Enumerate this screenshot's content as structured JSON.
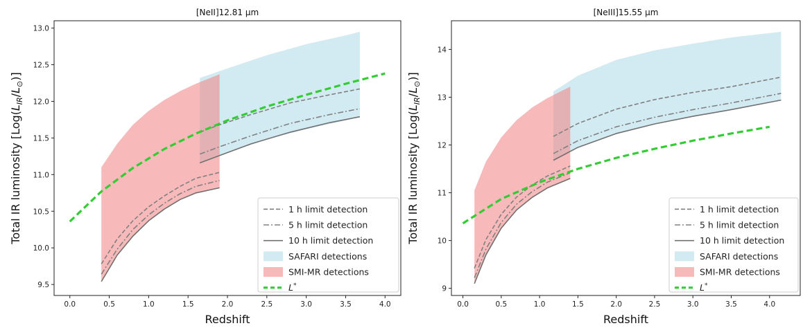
{
  "chart_data": [
    {
      "type": "line",
      "title": "[NeII]12.81 μm",
      "xlabel": "Redshift",
      "ylabel": "Total IR luminosity [Log(L_IR/L_⊙)]",
      "xlim": [
        -0.2,
        4.2
      ],
      "ylim": [
        9.35,
        13.1
      ],
      "xticks": [
        "0.0",
        "0.5",
        "1.0",
        "1.5",
        "2.0",
        "2.5",
        "3.0",
        "3.5",
        "4.0"
      ],
      "yticks": [
        "9.5",
        "10.0",
        "10.5",
        "11.0",
        "11.5",
        "12.0",
        "12.5",
        "13.0"
      ],
      "legend_position": "lower-right",
      "series": [
        {
          "name": "1 h limit detection",
          "style": "dashed",
          "color": "#808080",
          "segments": [
            {
              "x": [
                0.4,
                0.6,
                0.8,
                1.0,
                1.2,
                1.4,
                1.6,
                1.9
              ],
              "y": [
                9.78,
                10.12,
                10.37,
                10.56,
                10.71,
                10.84,
                10.95,
                11.03
              ]
            },
            {
              "x": [
                1.65,
                1.9,
                2.3,
                2.8,
                3.3,
                3.68
              ],
              "y": [
                11.58,
                11.68,
                11.82,
                11.98,
                12.09,
                12.17
              ]
            }
          ]
        },
        {
          "name": "5 h limit detection",
          "style": "dashdot",
          "color": "#808080",
          "segments": [
            {
              "x": [
                0.4,
                0.6,
                0.8,
                1.0,
                1.2,
                1.4,
                1.6,
                1.9
              ],
              "y": [
                9.64,
                9.98,
                10.25,
                10.45,
                10.61,
                10.74,
                10.84,
                10.92
              ]
            },
            {
              "x": [
                1.65,
                1.9,
                2.3,
                2.8,
                3.3,
                3.68
              ],
              "y": [
                11.28,
                11.38,
                11.53,
                11.7,
                11.82,
                11.9
              ]
            }
          ]
        },
        {
          "name": "10 h limit detection",
          "style": "solid",
          "color": "#707070",
          "segments": [
            {
              "x": [
                0.4,
                0.6,
                0.8,
                1.0,
                1.2,
                1.4,
                1.6,
                1.9
              ],
              "y": [
                9.54,
                9.9,
                10.16,
                10.37,
                10.53,
                10.66,
                10.75,
                10.82
              ]
            },
            {
              "x": [
                1.65,
                1.9,
                2.3,
                2.8,
                3.3,
                3.68
              ],
              "y": [
                11.16,
                11.26,
                11.42,
                11.58,
                11.71,
                11.79
              ]
            }
          ]
        },
        {
          "name": "SAFARI detections",
          "style": "fill",
          "color": "#add8e6",
          "x": [
            1.65,
            2.0,
            2.5,
            3.0,
            3.5,
            3.68
          ],
          "lower": [
            11.16,
            11.3,
            11.48,
            11.62,
            11.74,
            11.79
          ],
          "upper": [
            12.32,
            12.45,
            12.63,
            12.78,
            12.9,
            12.95
          ]
        },
        {
          "name": "SMI-MR detections",
          "style": "fill",
          "color": "#f08080",
          "x": [
            0.4,
            0.6,
            0.8,
            1.0,
            1.2,
            1.4,
            1.6,
            1.9
          ],
          "lower": [
            9.54,
            9.9,
            10.16,
            10.37,
            10.53,
            10.66,
            10.75,
            10.82
          ],
          "upper": [
            11.1,
            11.42,
            11.68,
            11.87,
            12.02,
            12.14,
            12.24,
            12.37
          ]
        },
        {
          "name": "L*",
          "style": "thick-dashed",
          "color": "#33cc33",
          "x": [
            0.0,
            0.4,
            0.8,
            1.2,
            1.6,
            2.0,
            2.5,
            3.0,
            3.5,
            4.0
          ],
          "y": [
            10.36,
            10.77,
            11.09,
            11.35,
            11.56,
            11.74,
            11.93,
            12.09,
            12.24,
            12.38
          ]
        }
      ]
    },
    {
      "type": "line",
      "title": "[NeIII]15.55 μm",
      "xlabel": "Redshift",
      "ylabel": "Total IR luminosity [Log(L_IR/L_⊙)]",
      "xlim": [
        -0.15,
        4.4
      ],
      "ylim": [
        8.85,
        14.6
      ],
      "xticks": [
        "0.0",
        "0.5",
        "1.0",
        "1.5",
        "2.0",
        "2.5",
        "3.0",
        "3.5",
        "4.0"
      ],
      "yticks": [
        "9",
        "10",
        "11",
        "12",
        "13",
        "14"
      ],
      "legend_position": "lower-right",
      "series": [
        {
          "name": "1 h limit detection",
          "style": "dashed",
          "color": "#808080",
          "segments": [
            {
              "x": [
                0.15,
                0.3,
                0.5,
                0.7,
                0.9,
                1.1,
                1.4
              ],
              "y": [
                9.42,
                10.02,
                10.55,
                10.91,
                11.16,
                11.35,
                11.56
              ]
            },
            {
              "x": [
                1.18,
                1.5,
                2.0,
                2.5,
                3.0,
                3.5,
                4.15
              ],
              "y": [
                12.18,
                12.45,
                12.75,
                12.95,
                13.1,
                13.22,
                13.42
              ]
            }
          ]
        },
        {
          "name": "5 h limit detection",
          "style": "dashdot",
          "color": "#808080",
          "segments": [
            {
              "x": [
                0.15,
                0.3,
                0.5,
                0.7,
                0.9,
                1.1,
                1.4
              ],
              "y": [
                9.22,
                9.82,
                10.38,
                10.76,
                11.02,
                11.22,
                11.42
              ]
            },
            {
              "x": [
                1.18,
                1.5,
                2.0,
                2.5,
                3.0,
                3.5,
                4.15
              ],
              "y": [
                11.82,
                12.09,
                12.38,
                12.58,
                12.74,
                12.88,
                13.08
              ]
            }
          ]
        },
        {
          "name": "10 h limit detection",
          "style": "solid",
          "color": "#707070",
          "segments": [
            {
              "x": [
                0.15,
                0.3,
                0.5,
                0.7,
                0.9,
                1.1,
                1.4
              ],
              "y": [
                9.1,
                9.7,
                10.26,
                10.64,
                10.9,
                11.1,
                11.3
              ]
            },
            {
              "x": [
                1.18,
                1.5,
                2.0,
                2.5,
                3.0,
                3.5,
                4.15
              ],
              "y": [
                11.68,
                11.95,
                12.24,
                12.44,
                12.6,
                12.74,
                12.94
              ]
            }
          ]
        },
        {
          "name": "SAFARI detections",
          "style": "fill",
          "color": "#add8e6",
          "x": [
            1.18,
            1.5,
            2.0,
            2.5,
            3.0,
            3.5,
            4.15
          ],
          "lower": [
            11.68,
            11.95,
            12.24,
            12.44,
            12.6,
            12.74,
            12.94
          ],
          "upper": [
            13.12,
            13.45,
            13.78,
            13.98,
            14.12,
            14.25,
            14.37
          ]
        },
        {
          "name": "SMI-MR detections",
          "style": "fill",
          "color": "#f08080",
          "x": [
            0.15,
            0.3,
            0.5,
            0.7,
            0.9,
            1.1,
            1.4
          ],
          "lower": [
            9.1,
            9.7,
            10.26,
            10.64,
            10.9,
            11.1,
            11.3
          ],
          "upper": [
            11.05,
            11.65,
            12.16,
            12.52,
            12.78,
            12.98,
            13.22
          ]
        },
        {
          "name": "L*",
          "style": "thick-dashed",
          "color": "#33cc33",
          "x": [
            0.0,
            0.5,
            1.0,
            1.5,
            2.0,
            2.5,
            3.0,
            3.5,
            4.0
          ],
          "y": [
            10.36,
            10.87,
            11.22,
            11.5,
            11.73,
            11.92,
            12.09,
            12.24,
            12.38
          ]
        }
      ]
    }
  ]
}
